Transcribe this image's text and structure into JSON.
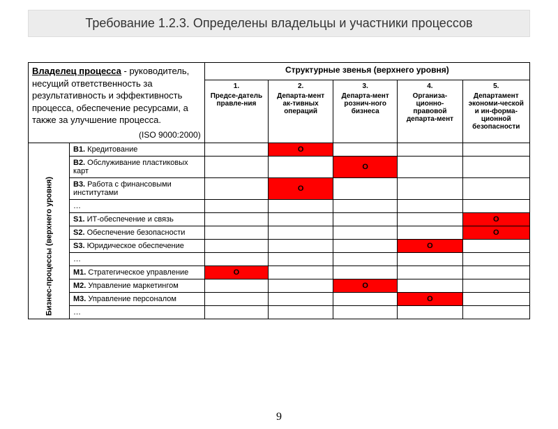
{
  "title": "Требование 1.2.3. Определены владельцы и участники процессов",
  "definition": {
    "term": "Владелец процесса",
    "text": " - руководитель, несущий ответственность за результативность и эффективность процесса, обеспечение ресурсами, а также за улучшение процесса.",
    "iso": "(ISO 9000:2000)"
  },
  "colGroupHeader": "Структурные звенья (верхнего уровня)",
  "rowGroupHeader": "Бизнес-процессы (верхнего уровня)",
  "columns": [
    {
      "num": "1.",
      "name": "Предсе-датель правле-ния"
    },
    {
      "num": "2.",
      "name": "Департа-мент ак-тивных операций"
    },
    {
      "num": "3.",
      "name": "Департа-мент рознич-ного бизнеса"
    },
    {
      "num": "4.",
      "name": "Организа-ционно-правовой департа-мент"
    },
    {
      "num": "5.",
      "name": "Департамент экономи-ческой и ин-форма-ционной безопасности"
    }
  ],
  "rows": [
    {
      "code": "B1.",
      "label": "Кредитование",
      "mark": 1
    },
    {
      "code": "B2.",
      "label": "Обслуживание пластиковых карт",
      "mark": 2
    },
    {
      "code": "B3.",
      "label": "Работа с финансовыми институтами",
      "mark": 1
    },
    {
      "code": "…",
      "label": "",
      "mark": -1
    },
    {
      "code": "S1.",
      "label": "ИТ-обеспечение и связь",
      "mark": 4
    },
    {
      "code": "S2.",
      "label": "Обеспечение безопасности",
      "mark": 4
    },
    {
      "code": "S3.",
      "label": "Юридическое обеспечение",
      "mark": 3
    },
    {
      "code": "…",
      "label": "",
      "mark": -1
    },
    {
      "code": "M1.",
      "label": "Стратегическое управление",
      "mark": 0
    },
    {
      "code": "M2.",
      "label": "Управление маркетингом",
      "mark": 2
    },
    {
      "code": "M3.",
      "label": "Управление персоналом",
      "mark": 3
    },
    {
      "code": "…",
      "label": "",
      "mark": -1
    }
  ],
  "markGlyph": "O",
  "colors": {
    "mark_bg": "#ff0000",
    "title_bg": "#ececec"
  },
  "pageNumber": "9"
}
